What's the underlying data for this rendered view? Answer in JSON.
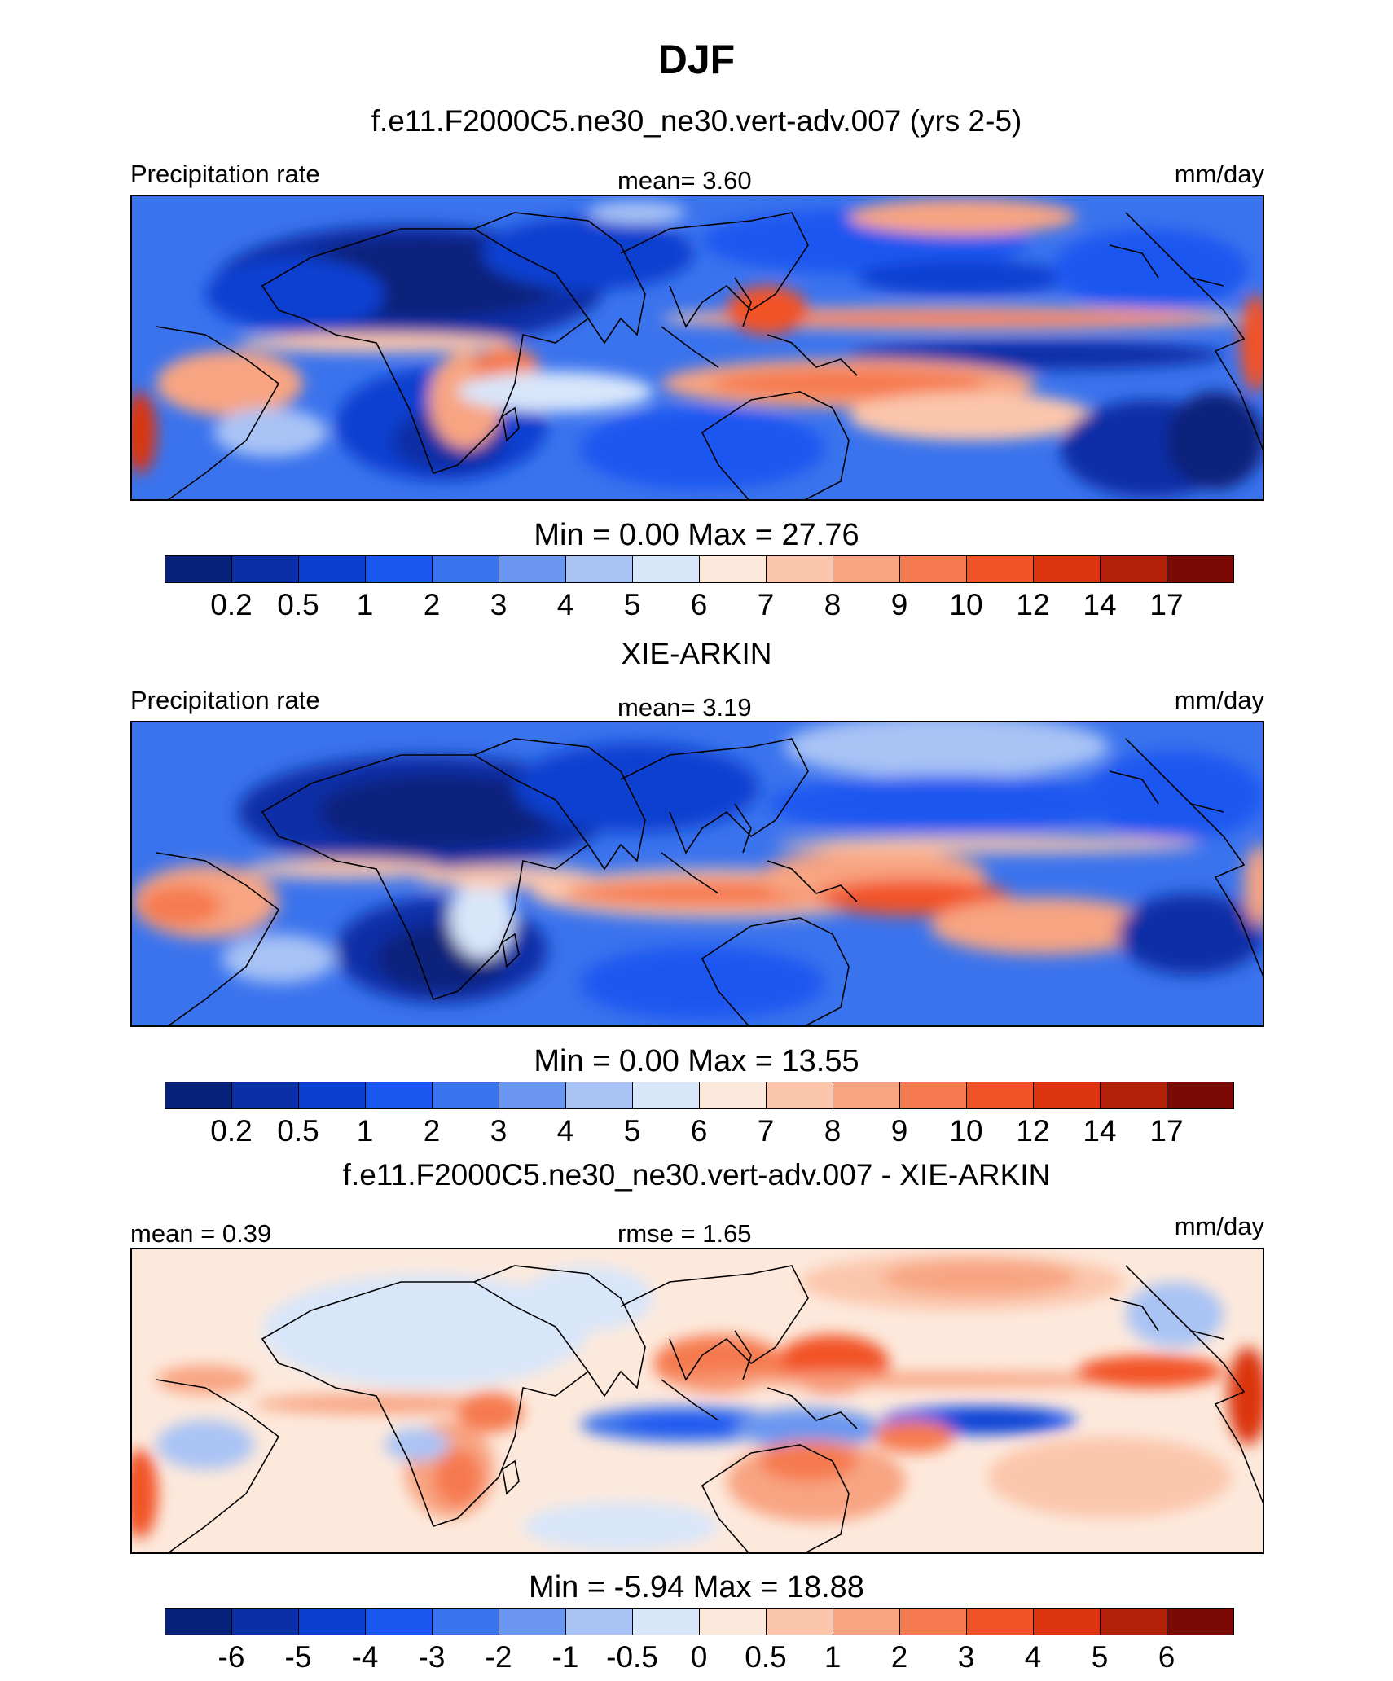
{
  "title": "DJF",
  "units": "mm/day",
  "panels": [
    {
      "id": "model",
      "subtitle": "f.e11.F2000C5.ne30_ne30.vert-adv.007 (yrs 2-5)",
      "left_label": "Precipitation rate",
      "stat_label": "mean=   3.60",
      "right_label": "mm/day",
      "minmax": "Min =    0.00 Max =  27.76",
      "scale": "precip"
    },
    {
      "id": "obs",
      "subtitle": "XIE-ARKIN",
      "left_label": "Precipitation rate",
      "stat_label": "mean=   3.19",
      "right_label": "mm/day",
      "minmax": "Min =    0.00 Max =  13.55",
      "scale": "precip"
    },
    {
      "id": "diff",
      "subtitle": "f.e11.F2000C5.ne30_ne30.vert-adv.007 - XIE-ARKIN",
      "left_label": "mean =   0.39",
      "stat_label": "rmse =   1.65",
      "right_label": "mm/day",
      "minmax": "Min =  -5.94 Max =  18.88",
      "scale": "diff"
    }
  ],
  "colorbars": {
    "precip": {
      "colors": [
        "#08217a",
        "#0b2fa6",
        "#0a3fd0",
        "#1a56f0",
        "#3a73ee",
        "#6b97f0",
        "#a9c3f5",
        "#d8e6fa",
        "#fde9dc",
        "#fbc6ac",
        "#f8a482",
        "#f67a4f",
        "#f25228",
        "#dc340e",
        "#b2200a",
        "#7a0a06"
      ],
      "ticks": [
        "0.2",
        "0.5",
        "1",
        "2",
        "3",
        "4",
        "5",
        "6",
        "7",
        "8",
        "9",
        "10",
        "12",
        "14",
        "17"
      ]
    },
    "diff": {
      "colors": [
        "#08217a",
        "#0b2fa6",
        "#0a3fd0",
        "#1a56f0",
        "#3a73ee",
        "#6b97f0",
        "#a9c3f5",
        "#d8e6fa",
        "#fde9dc",
        "#fbc6ac",
        "#f8a482",
        "#f67a4f",
        "#f25228",
        "#dc340e",
        "#b2200a",
        "#7a0a06"
      ],
      "ticks": [
        "-6",
        "-5",
        "-4",
        "-3",
        "-2",
        "-1",
        "-0.5",
        "0",
        "0.5",
        "1",
        "2",
        "3",
        "4",
        "5",
        "6"
      ]
    }
  },
  "map_data": {
    "projection": "cylindrical equidistant",
    "lon_range": [
      -90,
      240
    ],
    "lat_range": [
      -40,
      50
    ]
  }
}
